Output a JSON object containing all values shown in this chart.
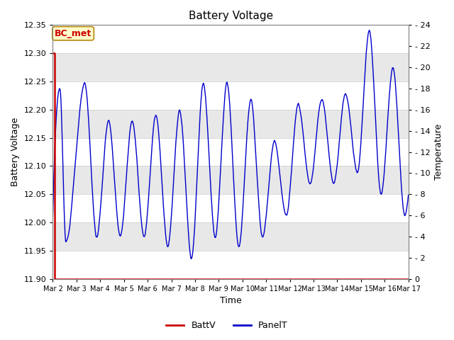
{
  "title": "Battery Voltage",
  "xlabel": "Time",
  "ylabel_left": "Battery Voltage",
  "ylabel_right": "Temperature",
  "annotation_text": "BC_met",
  "annotation_color": "#cc0000",
  "annotation_bg": "#ffffcc",
  "annotation_border": "#b8860b",
  "xlim_days": [
    0,
    15
  ],
  "ylim_left": [
    11.9,
    12.35
  ],
  "ylim_right": [
    0,
    24
  ],
  "fig_bg_color": "#ffffff",
  "plot_bg_color": "#e8e8e8",
  "band_color_light": "#f5f5f5",
  "battv_color": "#cc0000",
  "panelt_color": "#0000cc",
  "legend_battv": "BattV",
  "legend_panelt": "PanelT",
  "x_tick_labels": [
    "Mar 2",
    "Mar 3",
    "Mar 4",
    "Mar 5",
    "Mar 6",
    "Mar 7",
    "Mar 8",
    "Mar 9",
    "Mar 10",
    "Mar 11",
    "Mar 12",
    "Mar 13",
    "Mar 14",
    "Mar 15",
    "Mar 16",
    "Mar 17"
  ],
  "x_tick_positions": [
    0,
    1,
    2,
    3,
    4,
    5,
    6,
    7,
    8,
    9,
    10,
    11,
    12,
    13,
    14,
    15
  ],
  "yticks_left": [
    11.9,
    11.95,
    12.0,
    12.05,
    12.1,
    12.15,
    12.2,
    12.25,
    12.3,
    12.35
  ],
  "yticks_right": [
    0,
    2,
    4,
    6,
    8,
    10,
    12,
    14,
    16,
    18,
    20,
    22,
    24
  ]
}
